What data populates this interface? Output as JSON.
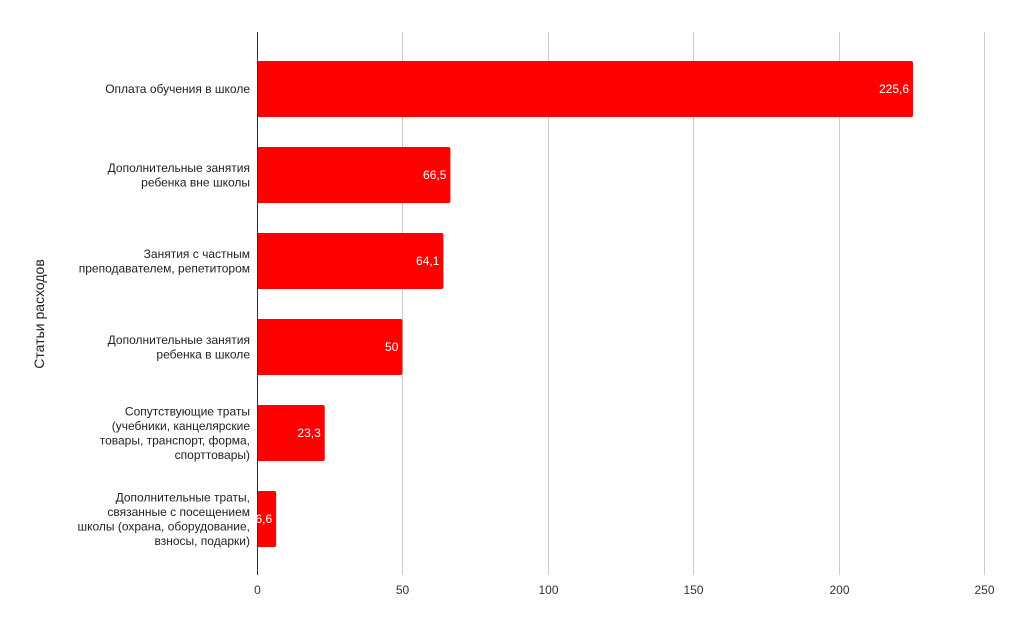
{
  "chart_data": {
    "type": "bar",
    "orientation": "horizontal",
    "ylabel": "Статьи расходов",
    "xlabel": "",
    "xlim": [
      0,
      250
    ],
    "x_ticks": [
      0,
      50,
      100,
      150,
      200,
      250
    ],
    "x_tick_labels": [
      "0",
      "50",
      "100",
      "150",
      "200",
      "250"
    ],
    "grid": true,
    "bar_color": "#ff0000",
    "data_label_color": "#ffffff",
    "categories": [
      [
        "Оплата обучения в школе"
      ],
      [
        "Дополнительные занятия",
        "ребенка вне школы"
      ],
      [
        "Занятия с частным",
        "преподавателем, репетитором"
      ],
      [
        "Дополнительные занятия",
        "ребенка в школе"
      ],
      [
        "Сопутствующие траты",
        "(учебники, канцелярские",
        "товары, транспорт, форма,",
        "спорттовары)"
      ],
      [
        "Дополнительные траты,",
        "связанные с посещением",
        "школы (охрана, оборудование,",
        "взносы, подарки)"
      ]
    ],
    "values": [
      225.6,
      66.5,
      64.1,
      50,
      23.3,
      6.6
    ],
    "data_labels": [
      "225,6",
      "66,5",
      "64,1",
      "50",
      "23,3",
      "6,6"
    ]
  }
}
